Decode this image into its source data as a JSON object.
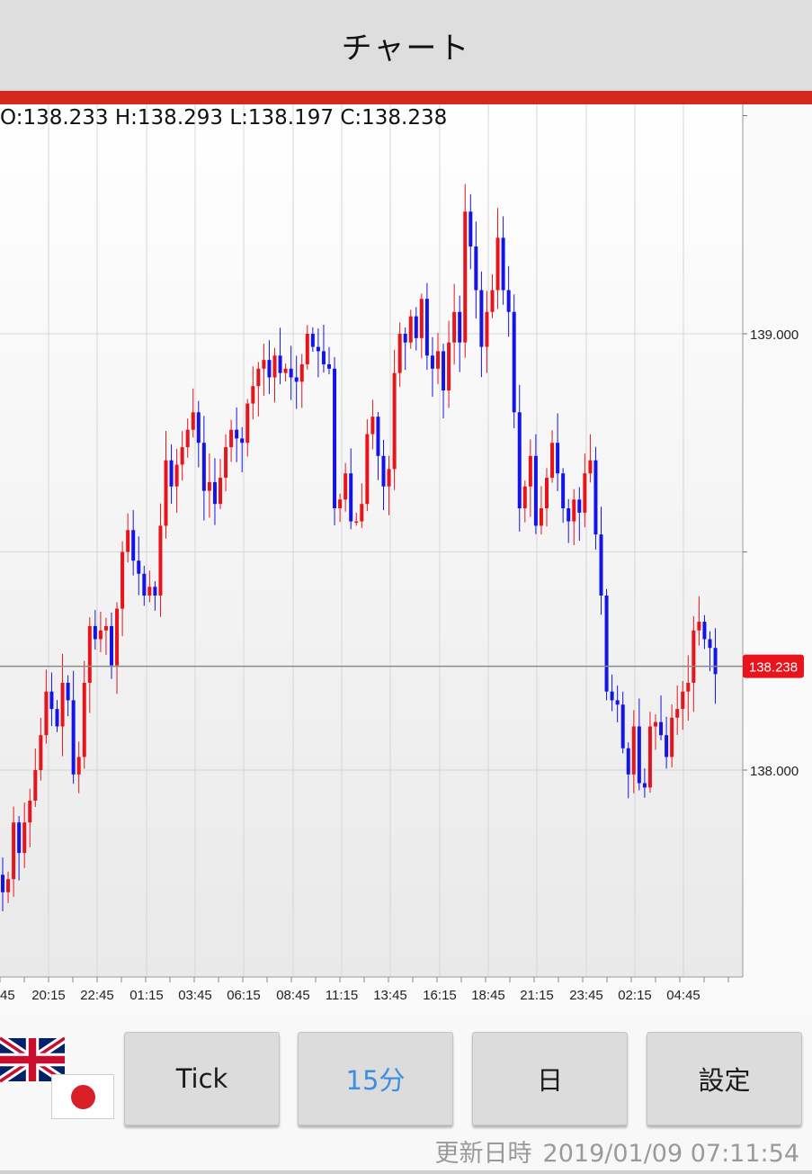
{
  "header": {
    "title": "チャート"
  },
  "ohlc": {
    "open": "138.233",
    "high": "138.293",
    "low": "138.197",
    "close": "138.238",
    "text": "O:138.233 H:138.293 L:138.197 C:138.238"
  },
  "chart_data": {
    "type": "candlestick",
    "title": "",
    "xlabel": "",
    "ylabel": "",
    "ylim": [
      137.55,
      139.5
    ],
    "y_ticks": [
      139.0,
      138.5,
      138.0
    ],
    "y_tick_labels": [
      "139.000",
      "",
      "138.000"
    ],
    "x_tick_labels": [
      "45",
      "20:15",
      "22:45",
      "01:15",
      "03:45",
      "06:15",
      "08:45",
      "11:15",
      "13:45",
      "16:15",
      "18:45",
      "21:15",
      "23:45",
      "02:15",
      "04:45"
    ],
    "current_price": 138.238,
    "current_price_label": "138.238",
    "grid": true,
    "up_color": "#e8141c",
    "down_color": "#1414e6",
    "closes": [
      137.72,
      137.75,
      137.88,
      137.81,
      137.88,
      137.93,
      138.0,
      138.08,
      138.18,
      138.14,
      138.1,
      138.2,
      138.16,
      137.99,
      138.03,
      138.2,
      138.33,
      138.3,
      138.32,
      138.33,
      138.24,
      138.37,
      138.5,
      138.55,
      138.48,
      138.45,
      138.4,
      138.42,
      138.4,
      138.56,
      138.71,
      138.65,
      138.7,
      138.74,
      138.78,
      138.82,
      138.75,
      138.64,
      138.66,
      138.61,
      138.67,
      138.74,
      138.78,
      138.76,
      138.75,
      138.84,
      138.88,
      138.92,
      138.94,
      138.9,
      138.95,
      138.91,
      138.92,
      138.9,
      138.89,
      138.93,
      139.0,
      138.97,
      138.96,
      138.93,
      138.92,
      138.6,
      138.62,
      138.68,
      138.57,
      138.57,
      138.61,
      138.77,
      138.81,
      138.72,
      138.65,
      138.69,
      138.91,
      139.0,
      138.98,
      139.04,
      138.99,
      139.08,
      138.95,
      138.92,
      138.96,
      138.87,
      138.98,
      139.05,
      138.98,
      139.28,
      139.2,
      139.1,
      138.97,
      139.05,
      139.1,
      139.22,
      139.1,
      139.05,
      138.82,
      138.6,
      138.65,
      138.72,
      138.56,
      138.6,
      138.67,
      138.75,
      138.68,
      138.6,
      138.57,
      138.62,
      138.59,
      138.68,
      138.71,
      138.54,
      138.4,
      138.18,
      138.16,
      138.15,
      138.05,
      137.99,
      138.1,
      137.97,
      137.96,
      138.1,
      138.11,
      138.08,
      138.03,
      138.12,
      138.14,
      138.18,
      138.2,
      138.32,
      138.34,
      138.3,
      138.28,
      138.22
    ]
  },
  "buttons": {
    "tick": "Tick",
    "min15": "15分",
    "day": "日",
    "settings": "設定"
  },
  "status": {
    "updated_label": "更新日時",
    "updated_value": "2019/01/09 07:11:54"
  },
  "flags": {
    "primary": "uk-flag-icon",
    "secondary": "jp-flag-icon"
  },
  "colors": {
    "accent_bar": "#d4281f",
    "price_label_bg": "#e8141c",
    "active_button_text": "#3d8ee0"
  }
}
